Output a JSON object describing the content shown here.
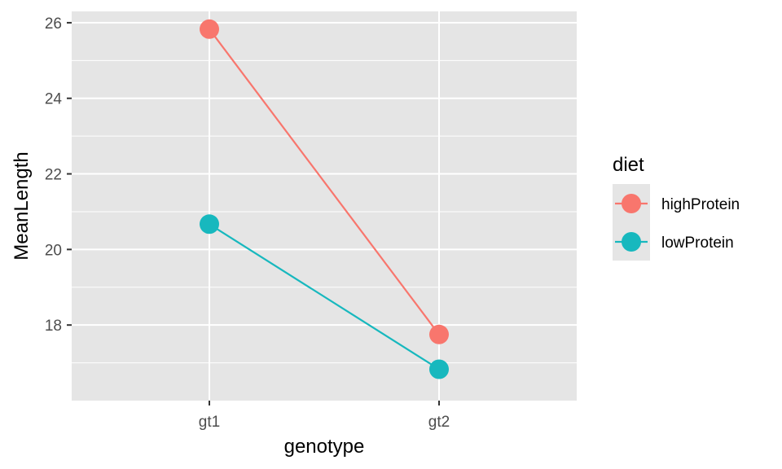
{
  "chart_data": {
    "type": "line",
    "xlabel": "genotype",
    "ylabel": "MeanLength",
    "categories": [
      "gt1",
      "gt2"
    ],
    "ylim": [
      16.0,
      26.3
    ],
    "y_ticks": [
      18,
      20,
      22,
      24,
      26
    ],
    "y_tick_labels": [
      "18",
      "20",
      "22",
      "24",
      "26"
    ],
    "grid": true,
    "panel_background": "#e5e5e5",
    "legend": {
      "title": "diet",
      "position": "right"
    },
    "series": [
      {
        "name": "highProtein",
        "color": "#f8766d",
        "values": [
          25.83,
          17.75
        ]
      },
      {
        "name": "lowProtein",
        "color": "#17b8be",
        "values": [
          20.67,
          16.83
        ]
      }
    ]
  }
}
